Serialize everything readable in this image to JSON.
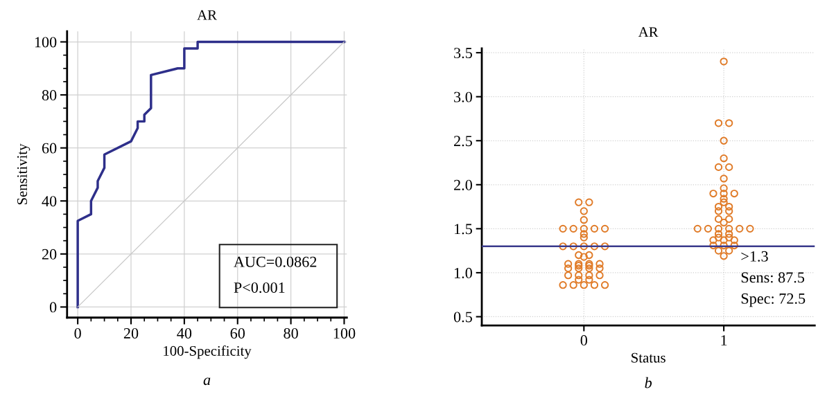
{
  "chart_data": [
    {
      "type": "line",
      "title": "AR",
      "xlabel": "100-Specificity",
      "ylabel": "Sensitivity",
      "xlim": [
        -4,
        101
      ],
      "ylim": [
        -4,
        104
      ],
      "xticks": [
        0,
        20,
        40,
        60,
        80,
        100
      ],
      "yticks": [
        0,
        20,
        40,
        60,
        80,
        100
      ],
      "grid": true,
      "marker": "none",
      "series": [
        {
          "color": "#2e2f8a",
          "x": [
            0,
            0,
            5,
            5,
            7.5,
            7.5,
            10,
            10,
            20,
            22.5,
            22.5,
            25,
            25,
            27.5,
            27.5,
            37.5,
            40,
            40,
            45,
            45,
            100
          ],
          "values": [
            0,
            32.5,
            35,
            40,
            45,
            47.5,
            52.5,
            57.5,
            62.5,
            67.5,
            70,
            70,
            72.5,
            75,
            87.5,
            90,
            90,
            97.5,
            97.5,
            100,
            100
          ]
        },
        {
          "color": "#c8c8c8",
          "x": [
            0,
            100
          ],
          "values": [
            0,
            100
          ]
        }
      ],
      "annotations": [
        "AUC=0.0862",
        "P<0.001",
        "a"
      ]
    },
    {
      "type": "scatter",
      "title": "AR",
      "xlabel": "Status",
      "categories": [
        "0",
        "1"
      ],
      "ylim": [
        0.4,
        3.55
      ],
      "yticks": [
        {
          "value": 0.5,
          "label": "0.5"
        },
        {
          "value": 1.0,
          "label": "1.0"
        },
        {
          "value": 1.5,
          "label": "1.5"
        },
        {
          "value": 2.0,
          "label": "2.0"
        },
        {
          "value": 2.5,
          "label": "2.5"
        },
        {
          "value": 3.0,
          "label": "3.0"
        },
        {
          "value": 3.5,
          "label": "3.5"
        }
      ],
      "grid": true,
      "marker": "circle",
      "series": [
        {
          "color": "#e07b28",
          "x": [
            "0",
            "0",
            "0",
            "0",
            "0",
            "0",
            "0",
            "0",
            "0",
            "0",
            "0",
            "0",
            "0",
            "0",
            "0",
            "0",
            "0",
            "0",
            "0",
            "0",
            "0",
            "0",
            "0",
            "0",
            "0",
            "0",
            "0",
            "0",
            "0",
            "0",
            "0",
            "0",
            "0",
            "0",
            "0",
            "0",
            "0",
            "0",
            "0",
            "0"
          ],
          "values": [
            1.8,
            1.8,
            1.7,
            1.6,
            1.5,
            1.5,
            1.5,
            1.5,
            1.5,
            1.44,
            1.4,
            1.3,
            1.3,
            1.3,
            1.3,
            1.3,
            1.2,
            1.2,
            1.18,
            1.1,
            1.1,
            1.1,
            1.1,
            1.08,
            1.08,
            1.05,
            1.05,
            1.05,
            1.05,
            0.97,
            0.97,
            0.97,
            0.97,
            0.92,
            0.92,
            0.86,
            0.86,
            0.86,
            0.86,
            0.86
          ]
        },
        {
          "color": "#e07b28",
          "x": [
            "1",
            "1",
            "1",
            "1",
            "1",
            "1",
            "1",
            "1",
            "1",
            "1",
            "1",
            "1",
            "1",
            "1",
            "1",
            "1",
            "1",
            "1",
            "1",
            "1",
            "1",
            "1",
            "1",
            "1",
            "1",
            "1",
            "1",
            "1",
            "1",
            "1",
            "1",
            "1",
            "1",
            "1",
            "1",
            "1",
            "1",
            "1",
            "1",
            "1"
          ],
          "values": [
            3.4,
            2.7,
            2.7,
            2.5,
            2.3,
            2.2,
            2.2,
            2.07,
            1.96,
            1.9,
            1.9,
            1.9,
            1.84,
            1.8,
            1.75,
            1.75,
            1.7,
            1.7,
            1.61,
            1.61,
            1.57,
            1.5,
            1.5,
            1.5,
            1.5,
            1.5,
            1.5,
            1.44,
            1.44,
            1.4,
            1.4,
            1.37,
            1.37,
            1.37,
            1.31,
            1.31,
            1.31,
            1.25,
            1.25,
            1.19
          ]
        }
      ],
      "ref_lines": [
        {
          "axis": "y",
          "value": 1.3,
          "label": ">1.3",
          "color": "#3a3a8c"
        }
      ],
      "annotations": [
        "Sens: 87.5",
        "Spec: 72.5",
        "b"
      ]
    }
  ]
}
